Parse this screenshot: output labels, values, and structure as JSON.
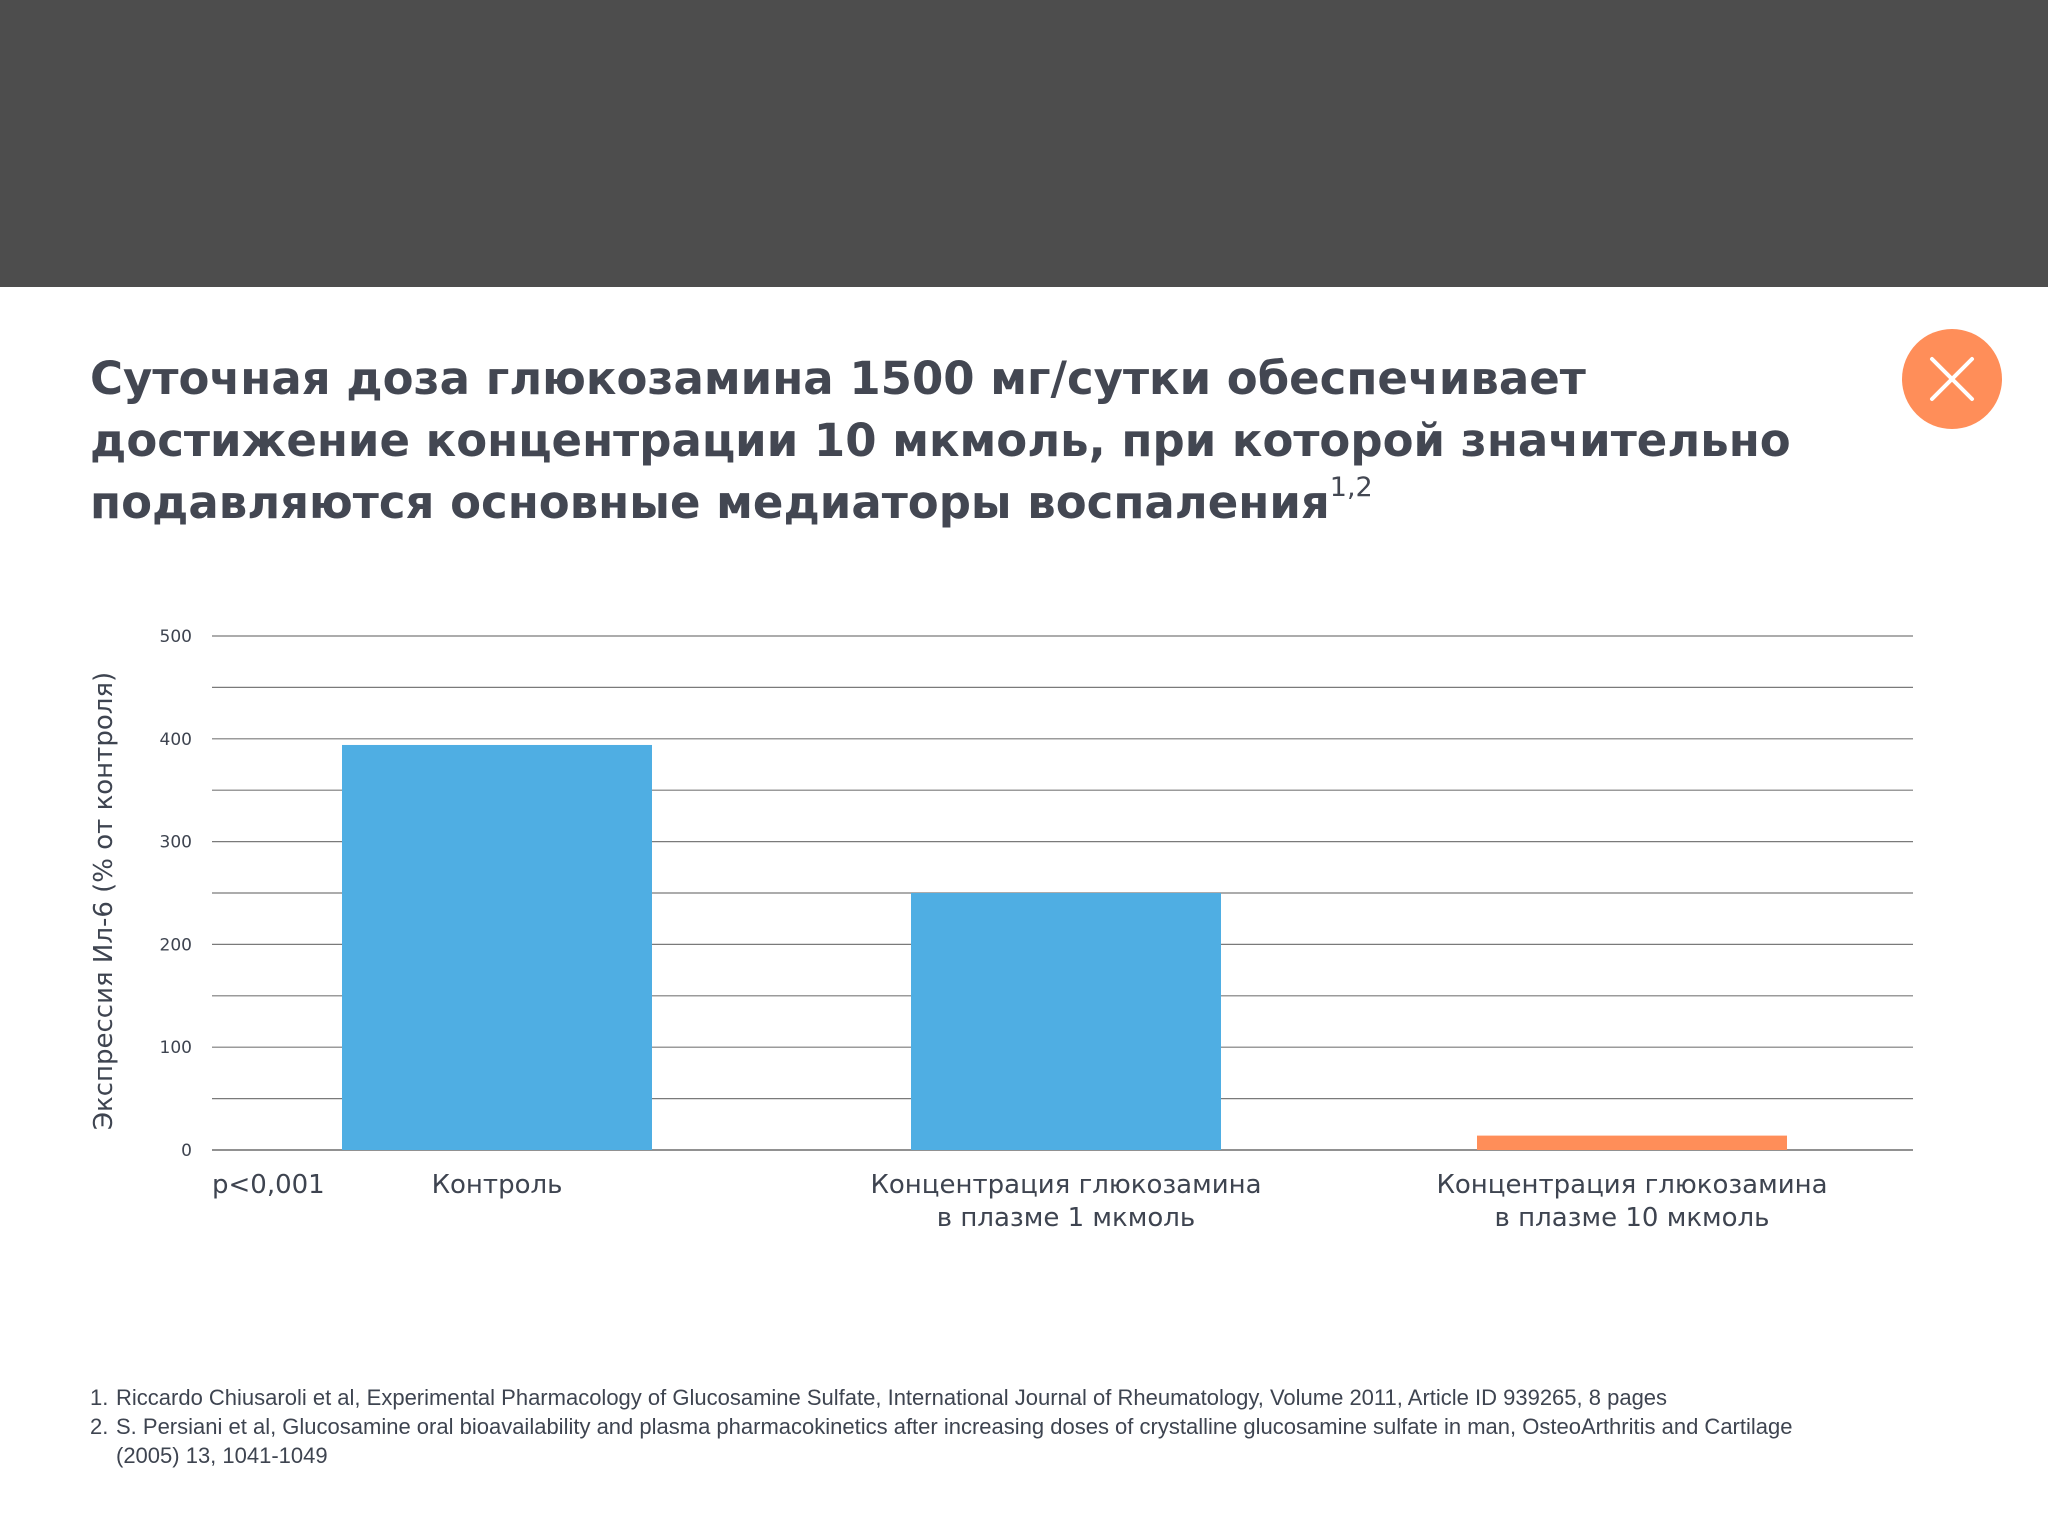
{
  "title": {
    "lines": [
      "Суточная доза глюкозамина 1500 мг/сутки обеспечивает",
      "достижение концентрации 10 мкмоль, при которой значительно",
      "подавляются основные медиаторы воспаления"
    ],
    "superscript": "1,2"
  },
  "close_button": {
    "icon": "close-icon"
  },
  "chart_data": {
    "type": "bar",
    "ylabel": "Экспрессия Ил-6 (% от контроля)",
    "ylim": [
      0,
      500
    ],
    "yticks": [
      0,
      100,
      200,
      300,
      400,
      500
    ],
    "grid": true,
    "annotation": "p<0,001",
    "categories": [
      [
        "Контроль"
      ],
      [
        "Концентрация глюкозамина",
        "в плазме 1 мкмоль"
      ],
      [
        "Концентрация глюкозамина",
        "в плазме 10 мкмоль"
      ]
    ],
    "values": [
      394,
      250,
      14
    ],
    "colors": [
      "#4faee3",
      "#4faee3",
      "#ff8e59"
    ]
  },
  "footnotes": [
    {
      "num": "1.",
      "text": "Riccardo Chiusaroli et al, Experimental Pharmacology of Glucosamine Sulfate, International Journal of Rheumatology, Volume 2011, Article ID 939265, 8 pages"
    },
    {
      "num": "2.",
      "text": "S. Persiani et al, Glucosamine oral bioavailability and plasma pharmacokinetics after increasing doses of crystalline glucosamine sulfate in man, OsteoArthritis and Cartilage (2005) 13, 1041-1049"
    }
  ]
}
